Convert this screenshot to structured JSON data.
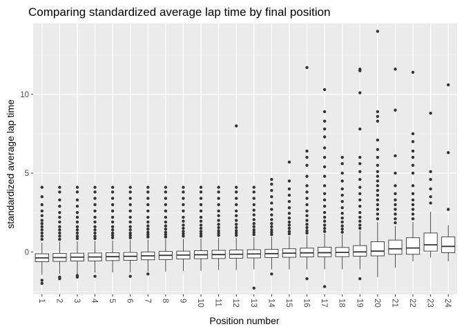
{
  "chart_data": {
    "type": "boxplot",
    "title": "Comparing standardized average lap time by final position",
    "xlabel": "Position number",
    "ylabel": "standardized average lap time",
    "ylim": [
      -2.7,
      14.5
    ],
    "yticks": [
      0,
      5,
      10
    ],
    "grid": true,
    "categories": [
      "1",
      "2",
      "3",
      "4",
      "5",
      "6",
      "7",
      "8",
      "9",
      "10",
      "11",
      "12",
      "13",
      "14",
      "15",
      "16",
      "17",
      "18",
      "19",
      "20",
      "21",
      "22",
      "23",
      "24"
    ],
    "boxes": [
      {
        "q1": -0.62,
        "median": -0.38,
        "q3": -0.12,
        "whisker_low": -1.45,
        "whisker_high": 0.6,
        "outliers": [
          -2.0,
          -1.8,
          0.8,
          1.0,
          1.2,
          1.4,
          1.6,
          1.8,
          2.0,
          2.3,
          2.6,
          3.0,
          3.5,
          4.1
        ]
      },
      {
        "q1": -0.6,
        "median": -0.36,
        "q3": -0.1,
        "whisker_low": -1.4,
        "whisker_high": 0.65,
        "outliers": [
          -1.7,
          -1.6,
          0.8,
          1.0,
          1.2,
          1.4,
          1.6,
          1.9,
          2.2,
          2.5,
          2.9,
          3.3,
          3.8,
          4.1
        ]
      },
      {
        "q1": -0.58,
        "median": -0.33,
        "q3": -0.08,
        "whisker_low": -1.4,
        "whisker_high": 0.68,
        "outliers": [
          -1.6,
          -1.5,
          0.85,
          1.0,
          1.2,
          1.4,
          1.6,
          1.9,
          2.2,
          2.5,
          2.9,
          3.3,
          3.8,
          4.1
        ]
      },
      {
        "q1": -0.57,
        "median": -0.32,
        "q3": -0.07,
        "whisker_low": -1.3,
        "whisker_high": 0.7,
        "outliers": [
          -1.55,
          0.85,
          1.0,
          1.2,
          1.4,
          1.6,
          1.9,
          2.2,
          2.6,
          3.0,
          3.4,
          3.8,
          4.1
        ]
      },
      {
        "q1": -0.55,
        "median": -0.3,
        "q3": -0.05,
        "whisker_low": -1.3,
        "whisker_high": 0.72,
        "outliers": [
          0.9,
          1.05,
          1.2,
          1.4,
          1.6,
          1.9,
          2.2,
          2.6,
          3.0,
          3.4,
          3.8,
          4.1
        ]
      },
      {
        "q1": -0.53,
        "median": -0.28,
        "q3": -0.03,
        "whisker_low": -1.3,
        "whisker_high": 0.75,
        "outliers": [
          -1.55,
          0.9,
          1.05,
          1.2,
          1.4,
          1.6,
          1.9,
          2.2,
          2.6,
          3.0,
          3.4,
          3.8,
          4.1
        ]
      },
      {
        "q1": -0.5,
        "median": -0.25,
        "q3": 0.0,
        "whisker_low": -1.25,
        "whisker_high": 0.78,
        "outliers": [
          -1.4,
          0.95,
          1.1,
          1.25,
          1.45,
          1.65,
          1.9,
          2.2,
          2.6,
          3.0,
          3.4,
          3.8,
          4.1
        ]
      },
      {
        "q1": -0.48,
        "median": -0.22,
        "q3": 0.03,
        "whisker_low": -1.25,
        "whisker_high": 0.8,
        "outliers": [
          0.95,
          1.1,
          1.25,
          1.45,
          1.65,
          1.9,
          2.2,
          2.6,
          3.0,
          3.4,
          3.8,
          4.1
        ]
      },
      {
        "q1": -0.45,
        "median": -0.2,
        "q3": 0.05,
        "whisker_low": -1.2,
        "whisker_high": 0.82,
        "outliers": [
          1.0,
          1.15,
          1.3,
          1.5,
          1.7,
          1.95,
          2.2,
          2.6,
          3.0,
          3.4,
          3.8,
          4.1
        ]
      },
      {
        "q1": -0.43,
        "median": -0.18,
        "q3": 0.08,
        "whisker_low": -1.2,
        "whisker_high": 0.85,
        "outliers": [
          1.0,
          1.15,
          1.3,
          1.5,
          1.7,
          1.95,
          2.2,
          2.6,
          3.0,
          3.4,
          3.8,
          4.1
        ]
      },
      {
        "q1": -0.42,
        "median": -0.17,
        "q3": 0.1,
        "whisker_low": -1.15,
        "whisker_high": 0.88,
        "outliers": [
          1.05,
          1.2,
          1.35,
          1.55,
          1.75,
          2.0,
          2.3,
          2.6,
          3.0,
          3.4,
          3.8,
          4.1
        ]
      },
      {
        "q1": -0.4,
        "median": -0.15,
        "q3": 0.12,
        "whisker_low": -1.15,
        "whisker_high": 0.9,
        "outliers": [
          1.05,
          1.2,
          1.35,
          1.55,
          1.75,
          2.0,
          2.3,
          2.6,
          3.0,
          3.4,
          3.8,
          4.1,
          8.0
        ]
      },
      {
        "q1": -0.38,
        "median": -0.13,
        "q3": 0.14,
        "whisker_low": -1.1,
        "whisker_high": 0.93,
        "outliers": [
          -2.3,
          1.1,
          1.25,
          1.4,
          1.6,
          1.8,
          2.05,
          2.35,
          2.65,
          3.0,
          3.4,
          3.8,
          4.1
        ]
      },
      {
        "q1": -0.36,
        "median": -0.11,
        "q3": 0.16,
        "whisker_low": -1.1,
        "whisker_high": 0.96,
        "outliers": [
          -1.4,
          1.1,
          1.25,
          1.4,
          1.6,
          1.8,
          2.05,
          2.35,
          2.7,
          3.1,
          3.5,
          3.9,
          4.3,
          4.6
        ]
      },
      {
        "q1": -0.34,
        "median": -0.08,
        "q3": 0.2,
        "whisker_low": -1.1,
        "whisker_high": 1.0,
        "outliers": [
          1.15,
          1.3,
          1.5,
          1.7,
          1.9,
          2.15,
          2.45,
          2.8,
          3.2,
          3.6,
          4.0,
          4.5,
          5.7
        ]
      },
      {
        "q1": -0.32,
        "median": -0.06,
        "q3": 0.24,
        "whisker_low": -1.1,
        "whisker_high": 1.05,
        "outliers": [
          -1.7,
          1.2,
          1.35,
          1.55,
          1.75,
          2.0,
          2.3,
          2.6,
          3.0,
          3.4,
          3.8,
          4.2,
          4.8,
          5.5,
          6.0,
          6.4,
          11.7
        ]
      },
      {
        "q1": -0.31,
        "median": -0.05,
        "q3": 0.3,
        "whisker_low": -1.1,
        "whisker_high": 1.15,
        "outliers": [
          -2.2,
          1.3,
          1.5,
          1.7,
          1.95,
          2.2,
          2.5,
          2.9,
          3.3,
          3.7,
          4.2,
          4.8,
          5.4,
          6.0,
          6.6,
          7.3,
          7.8,
          8.3,
          8.9,
          10.3
        ]
      },
      {
        "q1": -0.3,
        "median": -0.03,
        "q3": 0.28,
        "whisker_low": -1.1,
        "whisker_high": 1.1,
        "outliers": [
          1.25,
          1.45,
          1.65,
          1.9,
          2.15,
          2.45,
          2.8,
          3.2,
          3.6,
          4.0,
          4.5,
          5.0,
          5.6,
          6.0
        ]
      },
      {
        "q1": -0.27,
        "median": 0.0,
        "q3": 0.4,
        "whisker_low": -1.1,
        "whisker_high": 1.35,
        "outliers": [
          -1.7,
          1.5,
          1.7,
          1.95,
          2.2,
          2.5,
          2.9,
          3.3,
          3.7,
          4.1,
          4.6,
          5.1,
          5.6,
          6.0,
          7.8,
          10.1,
          11.5,
          11.6
        ]
      },
      {
        "q1": -0.25,
        "median": 0.05,
        "q3": 0.65,
        "whisker_low": -1.6,
        "whisker_high": 1.9,
        "outliers": [
          2.1,
          2.4,
          2.7,
          3.0,
          3.3,
          3.6,
          3.9,
          4.2,
          4.5,
          4.8,
          5.1,
          5.5,
          6.0,
          6.5,
          7.1,
          8.3,
          8.6,
          8.9,
          14.0
        ]
      },
      {
        "q1": -0.15,
        "median": 0.2,
        "q3": 0.75,
        "whisker_low": -1.0,
        "whisker_high": 1.65,
        "outliers": [
          1.85,
          2.1,
          2.4,
          2.7,
          3.0,
          3.3,
          3.7,
          4.2,
          5.0,
          6.1,
          9.0,
          11.6
        ]
      },
      {
        "q1": -0.15,
        "median": 0.25,
        "q3": 0.9,
        "whisker_low": -0.6,
        "whisker_high": 1.9,
        "outliers": [
          2.1,
          2.4,
          2.7,
          3.0,
          3.3,
          3.7,
          4.2,
          5.0,
          5.5,
          6.0,
          6.4,
          7.0,
          7.5,
          11.4
        ]
      },
      {
        "q1": 0.05,
        "median": 0.45,
        "q3": 1.2,
        "whisker_low": -0.35,
        "whisker_high": 2.55,
        "outliers": [
          3.1,
          3.5,
          4.0,
          4.6,
          5.1,
          8.8
        ]
      },
      {
        "q1": -0.05,
        "median": 0.35,
        "q3": 0.95,
        "whisker_low": -0.6,
        "whisker_high": 1.7,
        "outliers": [
          2.7,
          6.3,
          10.6
        ]
      }
    ]
  }
}
